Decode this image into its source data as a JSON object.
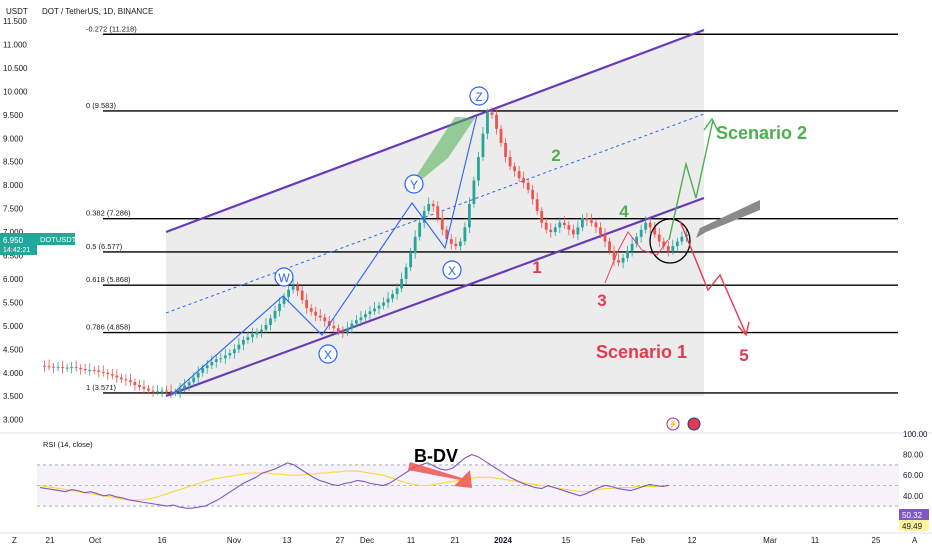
{
  "header": {
    "currency": "USDT",
    "title": "DOT / TetherUS, 1D, BINANCE"
  },
  "price_tag": {
    "symbol": "DOTUSDT",
    "price": "6.950",
    "countdown": "14:42:21"
  },
  "rsi": {
    "label": "RSI (14, close)",
    "value": "50.32",
    "ma_value": "49.49",
    "bearish_div_label": "B-DV"
  },
  "fib_levels": [
    {
      "label": "-0.272 (11.218)",
      "value": 11.218
    },
    {
      "label": "0 (9.583)",
      "value": 9.583
    },
    {
      "label": "0.382 (7.286)",
      "value": 7.286
    },
    {
      "label": "0.5 (6.577)",
      "value": 6.577
    },
    {
      "label": "0.618 (5.868)",
      "value": 5.868
    },
    {
      "label": "0.786 (4.858)",
      "value": 4.858
    },
    {
      "label": "1 (3.571)",
      "value": 3.571
    }
  ],
  "annotations": {
    "wave_w": "W",
    "wave_x1": "X",
    "wave_y": "Y",
    "wave_x2": "X",
    "wave_z": "Z",
    "wave_1": "1",
    "wave_2": "2",
    "wave_3": "3",
    "wave_4": "4",
    "wave_5": "5",
    "scenario_1": "Scenario 1",
    "scenario_2": "Scenario 2"
  },
  "colors": {
    "up": "#26a69a",
    "down": "#ef5350",
    "channel": "#673ab7",
    "fib": "#000000",
    "scenario_up": "#4caf50",
    "scenario_down": "#e53950",
    "wave_blue": "#2962ff",
    "rsi_line": "#7e57c2",
    "rsi_ma": "#fdd835",
    "rsi_band": "#7e57c2"
  },
  "chart_data": [
    {
      "type": "candlestick",
      "title": "DOT / TetherUS, 1D, BINANCE",
      "x_ticks": [
        "21",
        "Oct",
        "16",
        "Nov",
        "13",
        "27",
        "Dec",
        "11",
        "21",
        "2024",
        "15",
        "Feb",
        "12",
        "Mar",
        "11",
        "25"
      ],
      "y_ticks": [
        "11.500",
        "11.000",
        "10.500",
        "10.000",
        "9.500",
        "9.000",
        "8.500",
        "8.000",
        "7.500",
        "7.000",
        "6.500",
        "6.000",
        "5.500",
        "5.000",
        "4.500",
        "4.000",
        "3.500",
        "3.000"
      ],
      "ylim": [
        2.85,
        11.75
      ],
      "close_series": [
        4.15,
        4.14,
        4.13,
        4.11,
        4.12,
        4.1,
        4.11,
        4.12,
        4.1,
        4.08,
        4.06,
        4.06,
        4.05,
        4.02,
        4.0,
        3.97,
        3.94,
        3.9,
        3.86,
        3.84,
        3.8,
        3.74,
        3.7,
        3.66,
        3.62,
        3.6,
        3.6,
        3.62,
        3.61,
        3.58,
        3.58,
        3.67,
        3.73,
        3.8,
        3.9,
        4.0,
        4.1,
        4.16,
        4.23,
        4.29,
        4.31,
        4.37,
        4.42,
        4.5,
        4.6,
        4.7,
        4.76,
        4.82,
        4.87,
        4.92,
        5.02,
        5.16,
        5.32,
        5.47,
        5.62,
        5.77,
        5.86,
        5.75,
        5.55,
        5.38,
        5.3,
        5.22,
        5.18,
        5.1,
        5.0,
        4.95,
        4.88,
        4.86,
        4.95,
        5.05,
        5.12,
        5.18,
        5.25,
        5.31,
        5.37,
        5.43,
        5.5,
        5.58,
        5.68,
        5.8,
        6.0,
        6.25,
        6.55,
        6.9,
        7.2,
        7.45,
        7.6,
        7.55,
        7.3,
        7.05,
        6.85,
        6.75,
        6.7,
        6.8,
        7.1,
        7.6,
        8.1,
        8.6,
        9.1,
        9.55,
        9.5,
        9.2,
        8.9,
        8.6,
        8.4,
        8.3,
        8.15,
        8.05,
        7.9,
        7.7,
        7.45,
        7.2,
        7.05,
        7.0,
        7.1,
        7.2,
        7.15,
        7.05,
        6.95,
        7.1,
        7.3,
        7.25,
        7.2,
        7.1,
        6.95,
        6.8,
        6.6,
        6.4,
        6.35,
        6.45,
        6.6,
        6.75,
        6.9,
        7.05,
        7.2,
        7.1,
        6.95,
        6.8,
        6.7,
        6.6,
        6.7,
        6.8,
        6.9,
        6.95
      ],
      "channel": {
        "upper": [
          {
            "x": "2023-10-17",
            "y": 7.1
          },
          {
            "x": "2024-02-10",
            "y": 11.4
          }
        ],
        "lower": [
          {
            "x": "2023-10-17",
            "y": 3.55
          },
          {
            "x": "2024-02-10",
            "y": 7.65
          }
        ]
      },
      "scenario_2_path": [
        6.95,
        7.8,
        7.6,
        9.5
      ],
      "scenario_1_path": [
        6.95,
        6.0,
        5.85,
        4.95
      ]
    },
    {
      "type": "line",
      "title": "RSI (14, close)",
      "ylim": [
        20,
        100
      ],
      "y_ticks": [
        "100.00",
        "80.00",
        "60.00",
        "40.00"
      ],
      "series": [
        {
          "values": [
            48,
            47,
            46,
            45,
            44,
            46,
            45,
            43,
            44,
            42,
            40,
            41,
            39,
            38,
            36,
            35,
            34,
            33,
            32,
            31,
            30,
            31,
            29,
            28,
            28,
            29,
            30,
            33,
            36,
            40,
            44,
            48,
            52,
            55,
            58,
            62,
            64,
            66,
            69,
            72,
            70,
            66,
            62,
            58,
            55,
            53,
            51,
            50,
            52,
            53,
            55,
            54,
            52,
            51,
            50,
            52,
            56,
            60,
            64,
            68,
            70,
            72,
            69,
            66,
            65,
            67,
            72,
            77,
            80,
            78,
            74,
            70,
            66,
            62,
            58,
            55,
            52,
            50,
            48,
            47,
            50,
            48,
            46,
            44,
            42,
            40,
            42,
            45,
            48,
            50,
            49,
            47,
            46,
            45,
            47,
            49,
            51,
            50,
            49,
            50.32
          ]
        },
        {
          "values": [
            50,
            49,
            48,
            47,
            46,
            45,
            44,
            43,
            42,
            41,
            40,
            39,
            38,
            37,
            36,
            36,
            36,
            37,
            38,
            40,
            42,
            44,
            46,
            48,
            50,
            52,
            54,
            56,
            57,
            58,
            59,
            60,
            61,
            62,
            62,
            62,
            62,
            61,
            61,
            60,
            60,
            60,
            61,
            61,
            62,
            62,
            63,
            63,
            64,
            64,
            64,
            63,
            62,
            61,
            60,
            58,
            56,
            54,
            52,
            51,
            50,
            50,
            51,
            52,
            53,
            54,
            55,
            56,
            57,
            58,
            58,
            58,
            57,
            56,
            55,
            54,
            53,
            52,
            51,
            50,
            49,
            48,
            47,
            46,
            45,
            44,
            44,
            45,
            46,
            47,
            47,
            48,
            48,
            48,
            49,
            49,
            49,
            49,
            49,
            49.49
          ]
        }
      ]
    }
  ]
}
